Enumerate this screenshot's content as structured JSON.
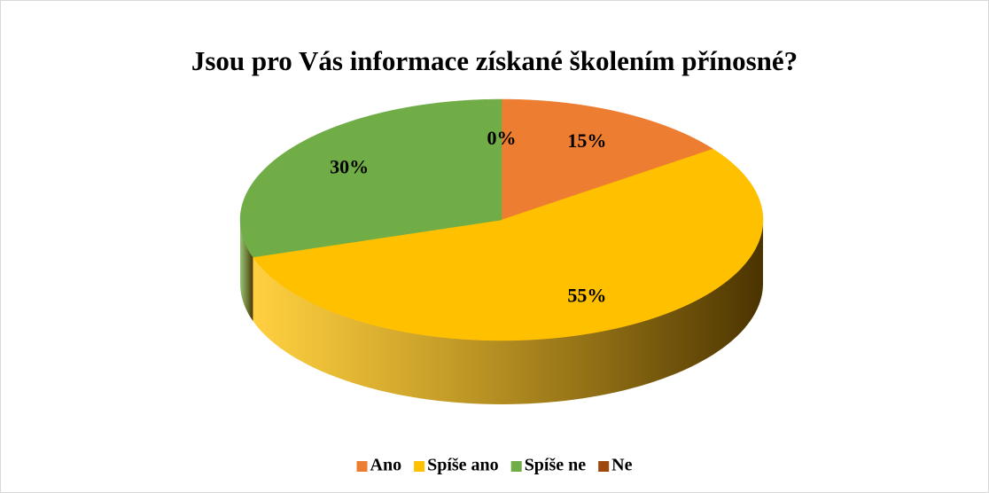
{
  "chart_data": {
    "type": "pie",
    "title": "Jsou pro Vás informace získané školením přínosné?",
    "categories": [
      "Ano",
      "Spíše ano",
      "Spíše ne",
      "Ne"
    ],
    "values": [
      15,
      55,
      30,
      0
    ],
    "value_labels": [
      "15%",
      "55%",
      "30%",
      "0%"
    ],
    "colors": [
      "#ed7d31",
      "#ffc000",
      "#70ad47",
      "#9e480e"
    ],
    "legend": "bottom"
  }
}
